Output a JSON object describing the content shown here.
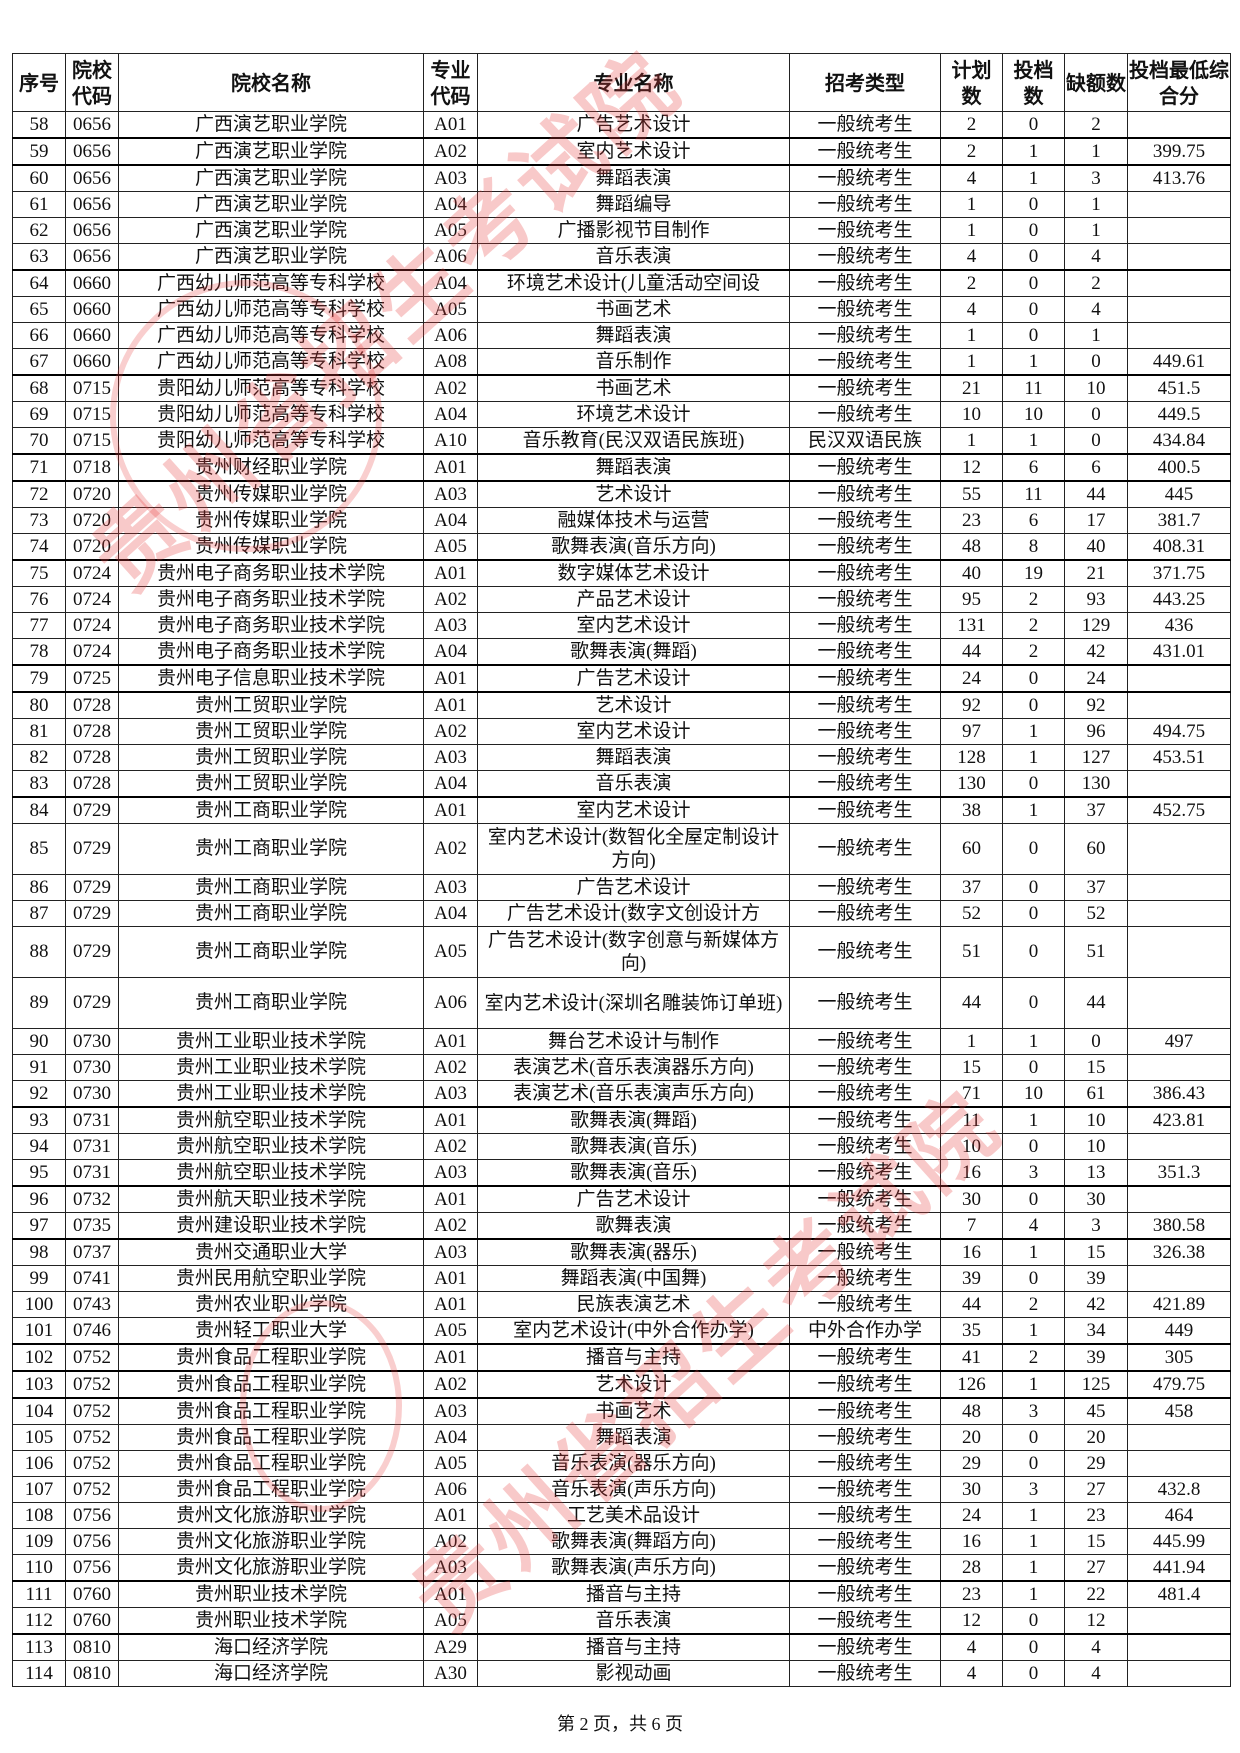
{
  "watermark": "贵州省招生考试院",
  "watermark_color": "#e63c3c",
  "headers": [
    "序号",
    "院校代码",
    "院校名称",
    "专业代码",
    "专业名称",
    "招考类型",
    "计划数",
    "投档数",
    "缺额数",
    "投档最低综合分"
  ],
  "rows": [
    [
      "58",
      "0656",
      "广西演艺职业学院",
      "A01",
      "广告艺术设计",
      "一般统考生",
      "2",
      "0",
      "2",
      ""
    ],
    [
      "59",
      "0656",
      "广西演艺职业学院",
      "A02",
      "室内艺术设计",
      "一般统考生",
      "2",
      "1",
      "1",
      "399.75"
    ],
    [
      "60",
      "0656",
      "广西演艺职业学院",
      "A03",
      "舞蹈表演",
      "一般统考生",
      "4",
      "1",
      "3",
      "413.76"
    ],
    [
      "61",
      "0656",
      "广西演艺职业学院",
      "A04",
      "舞蹈编导",
      "一般统考生",
      "1",
      "0",
      "1",
      ""
    ],
    [
      "62",
      "0656",
      "广西演艺职业学院",
      "A05",
      "广播影视节目制作",
      "一般统考生",
      "1",
      "0",
      "1",
      ""
    ],
    [
      "63",
      "0656",
      "广西演艺职业学院",
      "A06",
      "音乐表演",
      "一般统考生",
      "4",
      "0",
      "4",
      ""
    ],
    [
      "64",
      "0660",
      "广西幼儿师范高等专科学校",
      "A04",
      "环境艺术设计(儿童活动空间设",
      "一般统考生",
      "2",
      "0",
      "2",
      ""
    ],
    [
      "65",
      "0660",
      "广西幼儿师范高等专科学校",
      "A05",
      "书画艺术",
      "一般统考生",
      "4",
      "0",
      "4",
      ""
    ],
    [
      "66",
      "0660",
      "广西幼儿师范高等专科学校",
      "A06",
      "舞蹈表演",
      "一般统考生",
      "1",
      "0",
      "1",
      ""
    ],
    [
      "67",
      "0660",
      "广西幼儿师范高等专科学校",
      "A08",
      "音乐制作",
      "一般统考生",
      "1",
      "1",
      "0",
      "449.61"
    ],
    [
      "68",
      "0715",
      "贵阳幼儿师范高等专科学校",
      "A02",
      "书画艺术",
      "一般统考生",
      "21",
      "11",
      "10",
      "451.5"
    ],
    [
      "69",
      "0715",
      "贵阳幼儿师范高等专科学校",
      "A04",
      "环境艺术设计",
      "一般统考生",
      "10",
      "10",
      "0",
      "449.5"
    ],
    [
      "70",
      "0715",
      "贵阳幼儿师范高等专科学校",
      "A10",
      "音乐教育(民汉双语民族班)",
      "民汉双语民族",
      "1",
      "1",
      "0",
      "434.84"
    ],
    [
      "71",
      "0718",
      "贵州财经职业学院",
      "A01",
      "舞蹈表演",
      "一般统考生",
      "12",
      "6",
      "6",
      "400.5"
    ],
    [
      "72",
      "0720",
      "贵州传媒职业学院",
      "A03",
      "艺术设计",
      "一般统考生",
      "55",
      "11",
      "44",
      "445"
    ],
    [
      "73",
      "0720",
      "贵州传媒职业学院",
      "A04",
      "融媒体技术与运营",
      "一般统考生",
      "23",
      "6",
      "17",
      "381.7"
    ],
    [
      "74",
      "0720",
      "贵州传媒职业学院",
      "A05",
      "歌舞表演(音乐方向)",
      "一般统考生",
      "48",
      "8",
      "40",
      "408.31"
    ],
    [
      "75",
      "0724",
      "贵州电子商务职业技术学院",
      "A01",
      "数字媒体艺术设计",
      "一般统考生",
      "40",
      "19",
      "21",
      "371.75"
    ],
    [
      "76",
      "0724",
      "贵州电子商务职业技术学院",
      "A02",
      "产品艺术设计",
      "一般统考生",
      "95",
      "2",
      "93",
      "443.25"
    ],
    [
      "77",
      "0724",
      "贵州电子商务职业技术学院",
      "A03",
      "室内艺术设计",
      "一般统考生",
      "131",
      "2",
      "129",
      "436"
    ],
    [
      "78",
      "0724",
      "贵州电子商务职业技术学院",
      "A04",
      "歌舞表演(舞蹈)",
      "一般统考生",
      "44",
      "2",
      "42",
      "431.01"
    ],
    [
      "79",
      "0725",
      "贵州电子信息职业技术学院",
      "A01",
      "广告艺术设计",
      "一般统考生",
      "24",
      "0",
      "24",
      ""
    ],
    [
      "80",
      "0728",
      "贵州工贸职业学院",
      "A01",
      "艺术设计",
      "一般统考生",
      "92",
      "0",
      "92",
      ""
    ],
    [
      "81",
      "0728",
      "贵州工贸职业学院",
      "A02",
      "室内艺术设计",
      "一般统考生",
      "97",
      "1",
      "96",
      "494.75"
    ],
    [
      "82",
      "0728",
      "贵州工贸职业学院",
      "A03",
      "舞蹈表演",
      "一般统考生",
      "128",
      "1",
      "127",
      "453.51"
    ],
    [
      "83",
      "0728",
      "贵州工贸职业学院",
      "A04",
      "音乐表演",
      "一般统考生",
      "130",
      "0",
      "130",
      ""
    ],
    [
      "84",
      "0729",
      "贵州工商职业学院",
      "A01",
      "室内艺术设计",
      "一般统考生",
      "38",
      "1",
      "37",
      "452.75"
    ],
    [
      "85",
      "0729",
      "贵州工商职业学院",
      "A02",
      "室内艺术设计(数智化全屋定制设计方向)",
      "一般统考生",
      "60",
      "0",
      "60",
      ""
    ],
    [
      "86",
      "0729",
      "贵州工商职业学院",
      "A03",
      "广告艺术设计",
      "一般统考生",
      "37",
      "0",
      "37",
      ""
    ],
    [
      "87",
      "0729",
      "贵州工商职业学院",
      "A04",
      "广告艺术设计(数字文创设计方",
      "一般统考生",
      "52",
      "0",
      "52",
      ""
    ],
    [
      "88",
      "0729",
      "贵州工商职业学院",
      "A05",
      "广告艺术设计(数字创意与新媒体方向)",
      "一般统考生",
      "51",
      "0",
      "51",
      ""
    ],
    [
      "89",
      "0729",
      "贵州工商职业学院",
      "A06",
      "室内艺术设计(深圳名雕装饰订单班)",
      "一般统考生",
      "44",
      "0",
      "44",
      ""
    ],
    [
      "90",
      "0730",
      "贵州工业职业技术学院",
      "A01",
      "舞台艺术设计与制作",
      "一般统考生",
      "1",
      "1",
      "0",
      "497"
    ],
    [
      "91",
      "0730",
      "贵州工业职业技术学院",
      "A02",
      "表演艺术(音乐表演器乐方向)",
      "一般统考生",
      "15",
      "0",
      "15",
      ""
    ],
    [
      "92",
      "0730",
      "贵州工业职业技术学院",
      "A03",
      "表演艺术(音乐表演声乐方向)",
      "一般统考生",
      "71",
      "10",
      "61",
      "386.43"
    ],
    [
      "93",
      "0731",
      "贵州航空职业技术学院",
      "A01",
      "歌舞表演(舞蹈)",
      "一般统考生",
      "11",
      "1",
      "10",
      "423.81"
    ],
    [
      "94",
      "0731",
      "贵州航空职业技术学院",
      "A02",
      "歌舞表演(音乐)",
      "一般统考生",
      "10",
      "0",
      "10",
      ""
    ],
    [
      "95",
      "0731",
      "贵州航空职业技术学院",
      "A03",
      "歌舞表演(音乐)",
      "一般统考生",
      "16",
      "3",
      "13",
      "351.3"
    ],
    [
      "96",
      "0732",
      "贵州航天职业技术学院",
      "A01",
      "广告艺术设计",
      "一般统考生",
      "30",
      "0",
      "30",
      ""
    ],
    [
      "97",
      "0735",
      "贵州建设职业技术学院",
      "A02",
      "歌舞表演",
      "一般统考生",
      "7",
      "4",
      "3",
      "380.58"
    ],
    [
      "98",
      "0737",
      "贵州交通职业大学",
      "A03",
      "歌舞表演(器乐)",
      "一般统考生",
      "16",
      "1",
      "15",
      "326.38"
    ],
    [
      "99",
      "0741",
      "贵州民用航空职业学院",
      "A01",
      "舞蹈表演(中国舞)",
      "一般统考生",
      "39",
      "0",
      "39",
      ""
    ],
    [
      "100",
      "0743",
      "贵州农业职业学院",
      "A01",
      "民族表演艺术",
      "一般统考生",
      "44",
      "2",
      "42",
      "421.89"
    ],
    [
      "101",
      "0746",
      "贵州轻工职业大学",
      "A05",
      "室内艺术设计(中外合作办学)",
      "中外合作办学",
      "35",
      "1",
      "34",
      "449"
    ],
    [
      "102",
      "0752",
      "贵州食品工程职业学院",
      "A01",
      "播音与主持",
      "一般统考生",
      "41",
      "2",
      "39",
      "305"
    ],
    [
      "103",
      "0752",
      "贵州食品工程职业学院",
      "A02",
      "艺术设计",
      "一般统考生",
      "126",
      "1",
      "125",
      "479.75"
    ],
    [
      "104",
      "0752",
      "贵州食品工程职业学院",
      "A03",
      "书画艺术",
      "一般统考生",
      "48",
      "3",
      "45",
      "458"
    ],
    [
      "105",
      "0752",
      "贵州食品工程职业学院",
      "A04",
      "舞蹈表演",
      "一般统考生",
      "20",
      "0",
      "20",
      ""
    ],
    [
      "106",
      "0752",
      "贵州食品工程职业学院",
      "A05",
      "音乐表演(器乐方向)",
      "一般统考生",
      "29",
      "0",
      "29",
      ""
    ],
    [
      "107",
      "0752",
      "贵州食品工程职业学院",
      "A06",
      "音乐表演(声乐方向)",
      "一般统考生",
      "30",
      "3",
      "27",
      "432.8"
    ],
    [
      "108",
      "0756",
      "贵州文化旅游职业学院",
      "A01",
      "工艺美术品设计",
      "一般统考生",
      "24",
      "1",
      "23",
      "464"
    ],
    [
      "109",
      "0756",
      "贵州文化旅游职业学院",
      "A02",
      "歌舞表演(舞蹈方向)",
      "一般统考生",
      "16",
      "1",
      "15",
      "445.99"
    ],
    [
      "110",
      "0756",
      "贵州文化旅游职业学院",
      "A03",
      "歌舞表演(声乐方向)",
      "一般统考生",
      "28",
      "1",
      "27",
      "441.94"
    ],
    [
      "111",
      "0760",
      "贵州职业技术学院",
      "A01",
      "播音与主持",
      "一般统考生",
      "23",
      "1",
      "22",
      "481.4"
    ],
    [
      "112",
      "0760",
      "贵州职业技术学院",
      "A05",
      "音乐表演",
      "一般统考生",
      "12",
      "0",
      "12",
      ""
    ],
    [
      "113",
      "0810",
      "海口经济学院",
      "A29",
      "播音与主持",
      "一般统考生",
      "4",
      "0",
      "4",
      ""
    ],
    [
      "114",
      "0810",
      "海口经济学院",
      "A30",
      "影视动画",
      "一般统考生",
      "4",
      "0",
      "4",
      ""
    ]
  ],
  "footer": "第 2 页，共 6 页"
}
